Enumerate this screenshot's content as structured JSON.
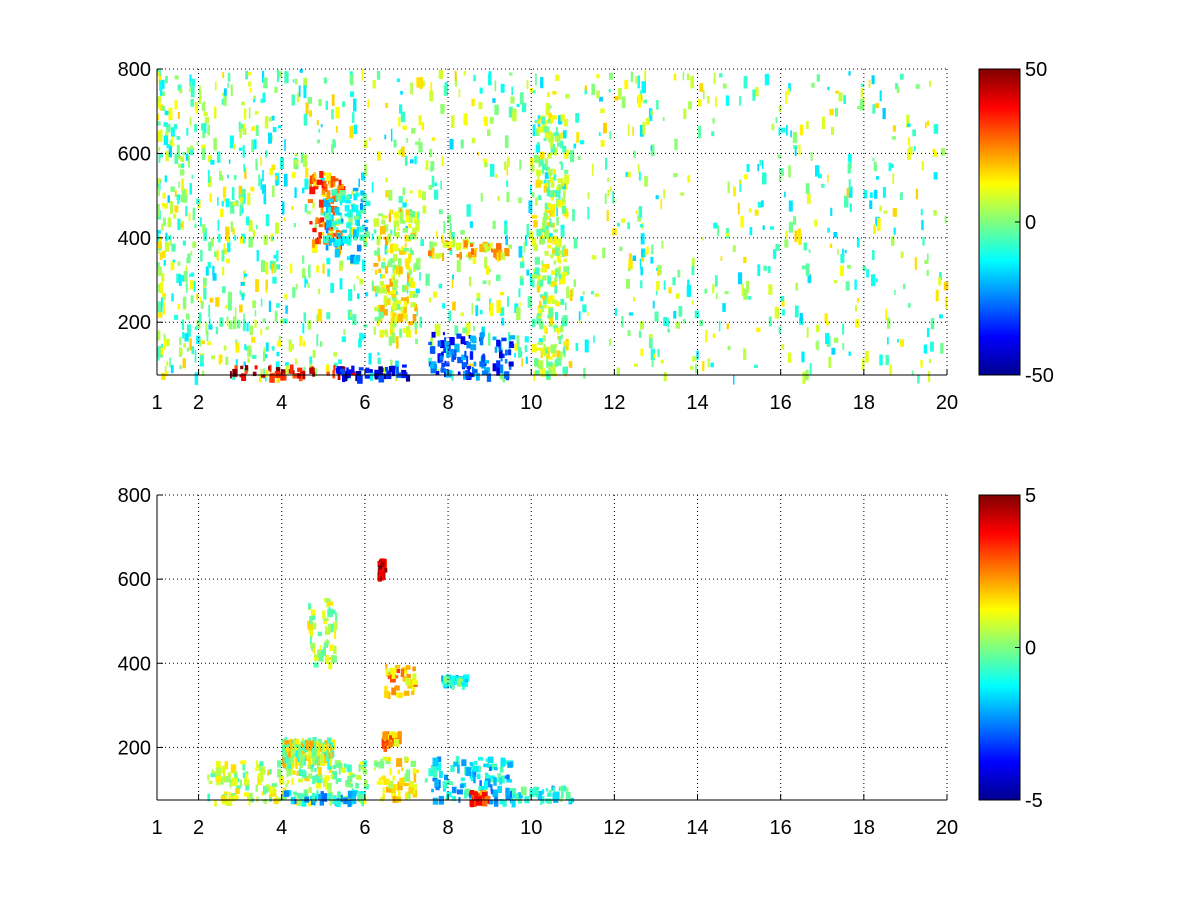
{
  "chart_data": [
    {
      "type": "heatmap",
      "title": "",
      "xlabel": "",
      "ylabel": "",
      "xlim": [
        1,
        20
      ],
      "ylim": [
        75,
        800
      ],
      "x_ticks": [
        1,
        2,
        4,
        6,
        8,
        10,
        12,
        14,
        16,
        18,
        20
      ],
      "y_ticks": [
        200,
        400,
        600,
        800
      ],
      "grid": true,
      "colormap": "jet",
      "clim": [
        -50,
        50
      ],
      "colorbar_ticks": [
        -50,
        0,
        50
      ],
      "features": [
        {
          "x": [
            1.0,
            20.0
          ],
          "y": [
            75,
            800
          ],
          "value": 0,
          "coverage": "sparse vertical streaks, density decreasing with x"
        },
        {
          "x": [
            2.6,
            5.7
          ],
          "y": [
            75,
            100
          ],
          "value": 40,
          "coverage": "dense red/orange band"
        },
        {
          "x": [
            5.3,
            7.0
          ],
          "y": [
            75,
            100
          ],
          "value": -40,
          "coverage": "dense blue band"
        },
        {
          "x": [
            7.5,
            9.5
          ],
          "y": [
            75,
            180
          ],
          "value": -30,
          "coverage": "dense blue/cyan band"
        },
        {
          "x": [
            4.6,
            5.4
          ],
          "y": [
            380,
            560
          ],
          "value": 25,
          "coverage": "curved orange/yellow streak"
        },
        {
          "x": [
            5.0,
            6.0
          ],
          "y": [
            350,
            520
          ],
          "value": -12,
          "coverage": "cyan blob"
        },
        {
          "x": [
            6.2,
            7.2
          ],
          "y": [
            180,
            470
          ],
          "value": 10,
          "coverage": "mixed yellow/cyan cluster"
        },
        {
          "x": [
            7.5,
            9.5
          ],
          "y": [
            360,
            400
          ],
          "value": 15,
          "coverage": "orange/yellow row"
        },
        {
          "x": [
            10.0,
            10.8
          ],
          "y": [
            75,
            700
          ],
          "value": 5,
          "coverage": "dense column"
        }
      ]
    },
    {
      "type": "heatmap",
      "title": "",
      "xlabel": "",
      "ylabel": "",
      "xlim": [
        1,
        20
      ],
      "ylim": [
        75,
        800
      ],
      "x_ticks": [
        1,
        2,
        4,
        6,
        8,
        10,
        12,
        14,
        16,
        18,
        20
      ],
      "y_ticks": [
        200,
        400,
        600,
        800
      ],
      "grid": true,
      "colormap": "jet",
      "clim": [
        -5,
        5
      ],
      "colorbar_ticks": [
        -5,
        0,
        5
      ],
      "features": [
        {
          "x": [
            2.2,
            6.0
          ],
          "y": [
            75,
            170
          ],
          "value": 0.5,
          "coverage": "dense green band"
        },
        {
          "x": [
            4.0,
            6.0
          ],
          "y": [
            75,
            100
          ],
          "value": -1.5,
          "coverage": "cyan/blue strip"
        },
        {
          "x": [
            4.0,
            5.2
          ],
          "y": [
            175,
            225
          ],
          "value": 0.5,
          "coverage": "sparse green row"
        },
        {
          "x": [
            6.2,
            7.2
          ],
          "y": [
            75,
            180
          ],
          "value": 1,
          "coverage": "yellow/cyan cluster"
        },
        {
          "x": [
            7.4,
            9.5
          ],
          "y": [
            75,
            180
          ],
          "value": -1.5,
          "coverage": "cyan/blue band"
        },
        {
          "x": [
            8.5,
            8.9
          ],
          "y": [
            75,
            100
          ],
          "value": 3,
          "coverage": "orange patch"
        },
        {
          "x": [
            9.5,
            11.0
          ],
          "y": [
            75,
            110
          ],
          "value": -1,
          "coverage": "cyan patch"
        },
        {
          "x": [
            4.6,
            5.3
          ],
          "y": [
            400,
            560
          ],
          "value": 0.5,
          "coverage": "curved green streak"
        },
        {
          "x": [
            6.4,
            7.2
          ],
          "y": [
            330,
            400
          ],
          "value": 2,
          "coverage": "orange/cyan ring"
        },
        {
          "x": [
            6.4,
            6.8
          ],
          "y": [
            210,
            240
          ],
          "value": 2,
          "coverage": "yellow patch"
        },
        {
          "x": [
            7.8,
            8.4
          ],
          "y": [
            355,
            375
          ],
          "value": -1,
          "coverage": "cyan row"
        },
        {
          "x": [
            6.3,
            6.4
          ],
          "y": [
            610,
            650
          ],
          "value": 4.5,
          "coverage": "dark red patch"
        }
      ]
    }
  ]
}
